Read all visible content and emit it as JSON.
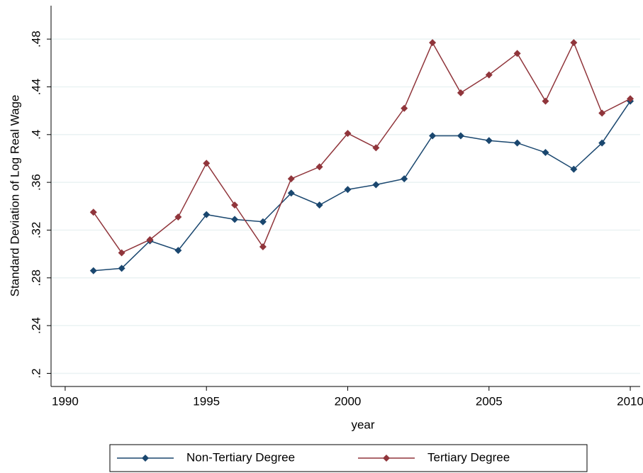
{
  "chart_data": {
    "type": "line",
    "x": [
      1991,
      1992,
      1993,
      1994,
      1995,
      1996,
      1997,
      1998,
      1999,
      2000,
      2001,
      2002,
      2003,
      2004,
      2005,
      2006,
      2007,
      2008,
      2009,
      2010
    ],
    "series": [
      {
        "name": "Non-Tertiary Degree",
        "color": "#1a476f",
        "values": [
          0.286,
          0.288,
          0.311,
          0.303,
          0.333,
          0.329,
          0.327,
          0.351,
          0.341,
          0.354,
          0.358,
          0.363,
          0.399,
          0.399,
          0.395,
          0.393,
          0.385,
          0.371,
          0.393,
          0.428
        ]
      },
      {
        "name": "Tertiary Degree",
        "color": "#90353b",
        "values": [
          0.335,
          0.301,
          0.312,
          0.331,
          0.376,
          0.341,
          0.306,
          0.363,
          0.373,
          0.401,
          0.389,
          0.422,
          0.477,
          0.435,
          0.45,
          0.468,
          0.428,
          0.477,
          0.418,
          0.43
        ]
      }
    ],
    "xlabel": "year",
    "ylabel": "Standard Deviation of Log Real Wage",
    "xlim": [
      1989.5,
      2010.35
    ],
    "xticks": [
      1990,
      1995,
      2000,
      2005,
      2010
    ],
    "ylim": [
      0.189,
      0.508
    ],
    "yticks": [
      {
        "value": 0.2,
        "label": ".2"
      },
      {
        "value": 0.24,
        "label": ".24"
      },
      {
        "value": 0.28,
        "label": ".28"
      },
      {
        "value": 0.32,
        "label": ".32"
      },
      {
        "value": 0.36,
        "label": ".36"
      },
      {
        "value": 0.4,
        "label": ".4"
      },
      {
        "value": 0.44,
        "label": ".44"
      },
      {
        "value": 0.48,
        "label": ".48"
      }
    ],
    "grid": true,
    "legend": "bottom"
  }
}
